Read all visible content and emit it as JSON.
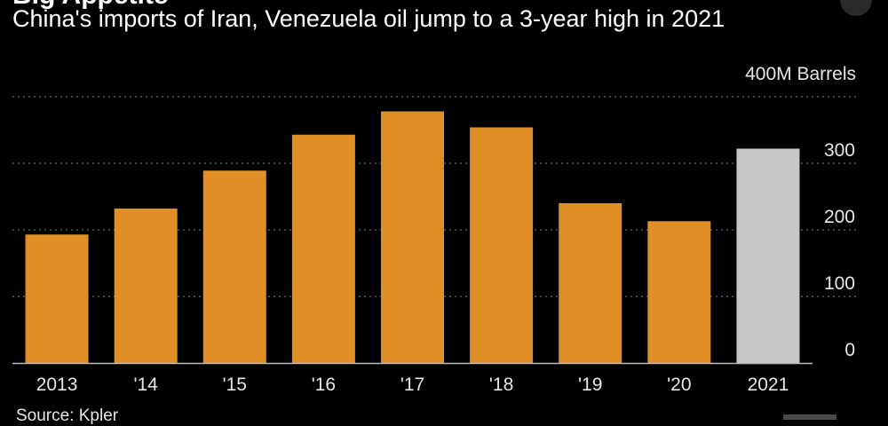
{
  "header": {
    "cut_text": "Big Appetite",
    "title": "China's imports of Iran, Venezuela oil jump to a 3-year high in 2021"
  },
  "source": "Source: Kpler",
  "chart_data": {
    "type": "bar",
    "title": "China's imports of Iran, Venezuela oil jump to a 3-year high in 2021",
    "unit_label": "400M Barrels",
    "categories": [
      "2013",
      "'14",
      "'15",
      "'16",
      "'17",
      "'18",
      "'19",
      "'20",
      "2021"
    ],
    "values": [
      193,
      232,
      289,
      343,
      378,
      354,
      240,
      213,
      322
    ],
    "ylim": [
      0,
      400
    ],
    "yticks": [
      0,
      100,
      200,
      300
    ],
    "ytick_labels": [
      "0",
      "100",
      "200",
      "300"
    ],
    "grid": true,
    "colors": {
      "bar": "#e08e26",
      "highlight": "#c8c8c8",
      "grid": "#555555",
      "axis": "#bbbbbb"
    },
    "highlight_index": 8
  }
}
